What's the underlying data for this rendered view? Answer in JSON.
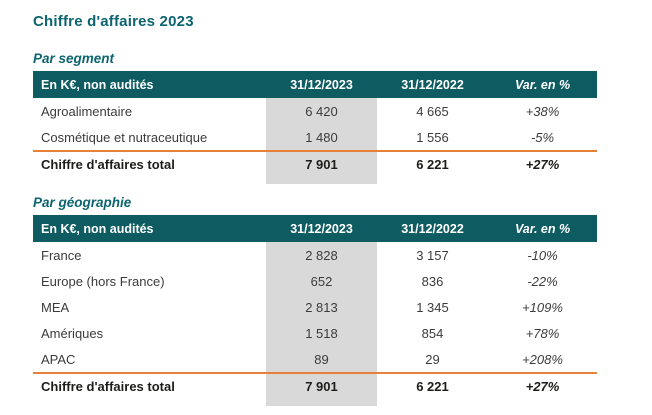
{
  "page": {
    "title": "Chiffre d'affaires 2023"
  },
  "colors": {
    "heading_teal": "#0c6470",
    "table_header_bg": "#0e5c61",
    "table_header_text": "#ffffff",
    "highlight_column_gray": "#d9d9d9",
    "total_rule_orange": "#e98038",
    "body_text": "#3c3c3c"
  },
  "tables": [
    {
      "section_title": "Par segment",
      "headers": {
        "label": "En K€, non audités",
        "y2023": "31/12/2023",
        "y2022": "31/12/2022",
        "variation": "Var. en %"
      },
      "rows": [
        {
          "label": "Agroalimentaire",
          "v2023": "6 420",
          "v2022": "4 665",
          "variation": "+38%"
        },
        {
          "label": "Cosmétique et nutraceutique",
          "v2023": "1 480",
          "v2022": "1 556",
          "variation": "-5%"
        }
      ],
      "total": {
        "label": "Chiffre d'affaires total",
        "v2023": "7 901",
        "v2022": "6 221",
        "variation": "+27%"
      }
    },
    {
      "section_title": "Par géographie",
      "headers": {
        "label": "En K€, non audités",
        "y2023": "31/12/2023",
        "y2022": "31/12/2022",
        "variation": "Var. en %"
      },
      "rows": [
        {
          "label": "France",
          "v2023": "2 828",
          "v2022": "3 157",
          "variation": "-10%"
        },
        {
          "label": "Europe (hors France)",
          "v2023": "652",
          "v2022": "836",
          "variation": "-22%"
        },
        {
          "label": "MEA",
          "v2023": "2 813",
          "v2022": "1 345",
          "variation": "+109%"
        },
        {
          "label": "Amériques",
          "v2023": "1 518",
          "v2022": "854",
          "variation": "+78%"
        },
        {
          "label": "APAC",
          "v2023": "89",
          "v2022": "29",
          "variation": "+208%"
        }
      ],
      "total": {
        "label": "Chiffre d'affaires total",
        "v2023": "7 901",
        "v2022": "6 221",
        "variation": "+27%"
      }
    }
  ]
}
